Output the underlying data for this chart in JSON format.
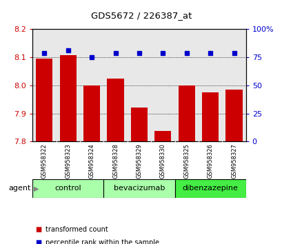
{
  "title": "GDS5672 / 226387_at",
  "samples": [
    "GSM958322",
    "GSM958323",
    "GSM958324",
    "GSM958328",
    "GSM958329",
    "GSM958330",
    "GSM958325",
    "GSM958326",
    "GSM958327"
  ],
  "red_values": [
    8.095,
    8.108,
    8.0,
    8.025,
    7.921,
    7.838,
    8.0,
    7.975,
    7.985
  ],
  "blue_values": [
    79,
    81,
    75,
    79,
    79,
    79,
    79,
    79,
    79
  ],
  "ylim_left": [
    7.8,
    8.2
  ],
  "ylim_right": [
    0,
    100
  ],
  "yticks_left": [
    7.8,
    7.9,
    8.0,
    8.1,
    8.2
  ],
  "yticks_right": [
    0,
    25,
    50,
    75,
    100
  ],
  "ytick_labels_right": [
    "0",
    "25",
    "50",
    "75",
    "100%"
  ],
  "bar_color": "#cc0000",
  "dot_color": "#0000cc",
  "background_color": "#ffffff",
  "plot_bg_color": "#e8e8e8",
  "bar_width": 0.7,
  "grid_lines": [
    7.9,
    8.0,
    8.1
  ],
  "groups": [
    {
      "label": "control",
      "start": 0,
      "end": 2,
      "color": "#aaffaa"
    },
    {
      "label": "bevacizumab",
      "start": 3,
      "end": 5,
      "color": "#aaffaa"
    },
    {
      "label": "dibenzazepine",
      "start": 6,
      "end": 8,
      "color": "#44ee44"
    }
  ],
  "legend_items": [
    {
      "label": "transformed count",
      "color": "#cc0000"
    },
    {
      "label": "percentile rank within the sample",
      "color": "#0000cc"
    }
  ],
  "agent_label": "agent"
}
